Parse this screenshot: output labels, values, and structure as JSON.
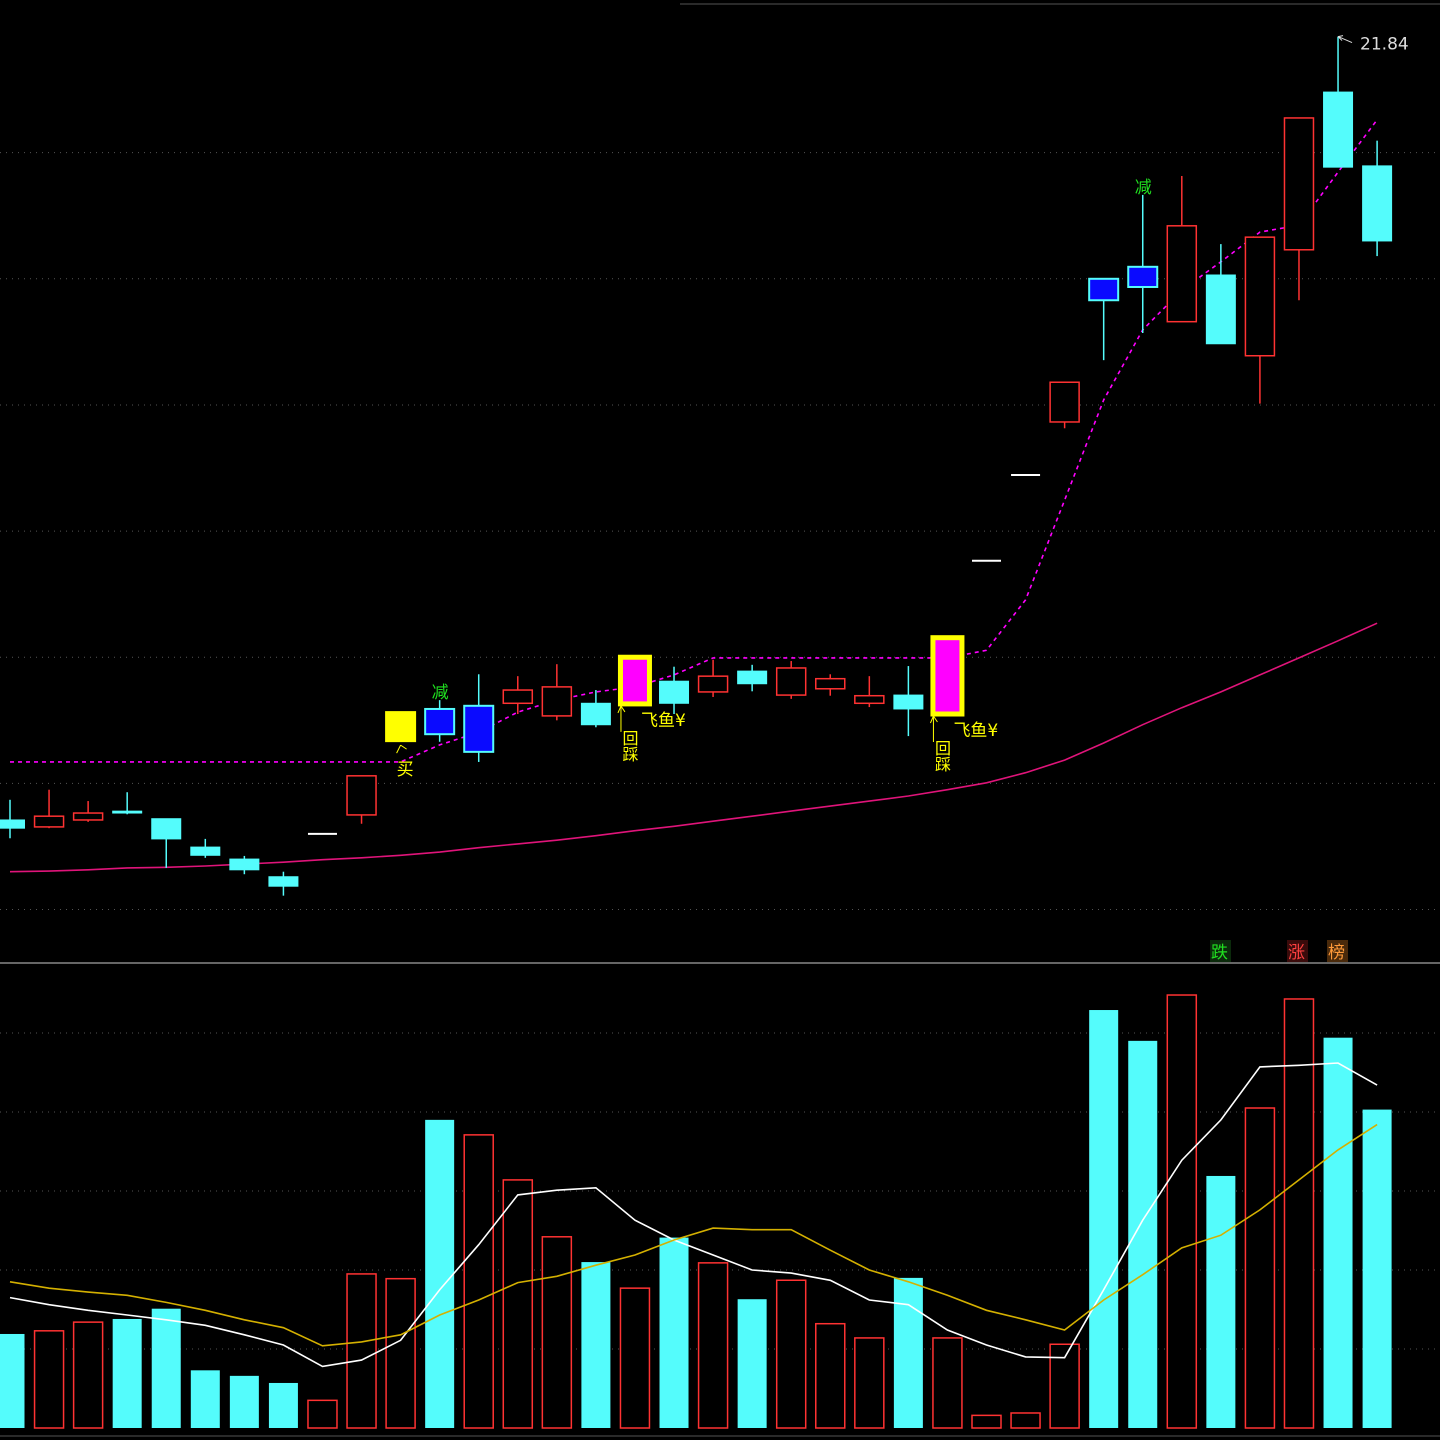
{
  "chart_data": [
    {
      "type": "candlestick",
      "open": [
        9.42,
        9.31,
        9.42,
        9.56,
        9.44,
        8.99,
        8.8,
        8.52,
        9.2,
        9.5,
        10.67,
        11.18,
        10.5,
        11.27,
        11.07,
        11.27,
        11.26,
        11.62,
        11.45,
        11.78,
        11.4,
        11.5,
        11.27,
        11.4,
        11.1,
        13.53,
        14.89,
        15.73,
        18.0,
        18.19,
        17.32,
        18.06,
        16.78,
        18.46,
        20.96,
        19.79
      ],
      "high": [
        9.74,
        9.9,
        9.72,
        9.86,
        9.44,
        9.12,
        8.85,
        8.6,
        9.2,
        10.12,
        11.13,
        11.32,
        11.73,
        11.7,
        11.89,
        11.48,
        12.0,
        11.85,
        11.96,
        11.88,
        11.94,
        11.73,
        11.7,
        11.86,
        12.31,
        13.53,
        14.89,
        16.36,
        18.0,
        19.33,
        19.63,
        18.55,
        18.66,
        20.55,
        21.84,
        20.19
      ],
      "low": [
        9.13,
        9.29,
        9.39,
        9.51,
        8.66,
        8.82,
        8.56,
        8.22,
        9.2,
        9.36,
        10.67,
        10.66,
        10.34,
        11.1,
        11.0,
        10.89,
        11.26,
        11.1,
        11.37,
        11.46,
        11.34,
        11.39,
        11.21,
        10.75,
        11.1,
        13.53,
        14.89,
        15.63,
        16.71,
        17.14,
        17.32,
        16.97,
        16.02,
        17.66,
        19.77,
        18.36
      ],
      "close": [
        9.29,
        9.48,
        9.53,
        9.53,
        9.12,
        8.86,
        8.63,
        8.37,
        9.2,
        10.12,
        11.13,
        10.78,
        11.23,
        11.48,
        11.53,
        10.93,
        12.0,
        11.27,
        11.7,
        11.58,
        11.83,
        11.66,
        11.39,
        11.18,
        12.31,
        13.53,
        14.89,
        16.36,
        17.66,
        17.87,
        18.84,
        16.97,
        18.66,
        20.55,
        19.77,
        18.6
      ],
      "body_colors": [
        null,
        null,
        null,
        null,
        null,
        null,
        null,
        null,
        null,
        null,
        "#ffff00",
        "#0a0aff",
        "#0a0aff",
        null,
        null,
        null,
        "#ff00ff",
        null,
        null,
        null,
        null,
        null,
        null,
        null,
        "#ff00ff",
        null,
        null,
        null,
        "#0a0aff",
        "#0a0aff",
        null,
        null,
        null,
        null,
        null,
        null
      ],
      "up_color": "#ff3232",
      "down_color": "#54fcfc",
      "flat_color": "#ffffff",
      "lines": [
        {
          "color": "#ff00ff",
          "dashed": true,
          "values": [
            10.34,
            10.34,
            10.34,
            10.34,
            10.34,
            10.34,
            10.34,
            10.34,
            10.34,
            10.34,
            10.34,
            10.61,
            10.81,
            11.13,
            11.32,
            11.45,
            11.53,
            11.72,
            11.99,
            11.99,
            11.99,
            11.99,
            11.99,
            11.99,
            11.99,
            12.11,
            12.91,
            14.49,
            16.08,
            17.19,
            17.82,
            18.27,
            18.74,
            18.85,
            19.69,
            20.52
          ]
        },
        {
          "color": "#e0147a",
          "dashed": false,
          "values": [
            8.6,
            8.61,
            8.63,
            8.66,
            8.67,
            8.69,
            8.72,
            8.75,
            8.79,
            8.82,
            8.86,
            8.91,
            8.98,
            9.04,
            9.1,
            9.17,
            9.25,
            9.32,
            9.4,
            9.48,
            9.56,
            9.64,
            9.72,
            9.8,
            9.9,
            10.01,
            10.17,
            10.37,
            10.64,
            10.93,
            11.2,
            11.45,
            11.72,
            11.99,
            12.26,
            12.54
          ]
        }
      ],
      "ylim": [
        7.2,
        22.42
      ],
      "yticks": [
        8,
        10,
        12,
        14,
        16,
        18,
        20
      ],
      "grid": true,
      "annotations": {
        "sell": [
          "减",
          "减"
        ],
        "buy": "买",
        "pullback": [
          "回踩",
          "回踩"
        ],
        "flyfish": [
          "飞鱼¥",
          "飞鱼¥"
        ]
      },
      "tabs": [
        "跌",
        "涨",
        "榜"
      ]
    },
    {
      "type": "volume",
      "values": [
        1.19,
        1.23,
        1.34,
        1.38,
        1.51,
        0.73,
        0.66,
        0.57,
        0.35,
        1.95,
        1.89,
        3.9,
        3.71,
        3.14,
        2.42,
        2.1,
        1.77,
        2.41,
        2.09,
        1.63,
        1.87,
        1.32,
        1.14,
        1.9,
        1.14,
        0.16,
        0.19,
        1.06,
        5.29,
        4.9,
        5.48,
        3.19,
        4.05,
        5.43,
        4.94,
        4.03
      ],
      "lines": [
        {
          "color": "#ffffff",
          "values": [
            1.65,
            1.56,
            1.49,
            1.43,
            1.37,
            1.3,
            1.18,
            1.05,
            0.78,
            0.86,
            1.11,
            1.75,
            2.32,
            2.95,
            3.01,
            3.04,
            2.63,
            2.38,
            2.19,
            2.0,
            1.96,
            1.87,
            1.62,
            1.56,
            1.24,
            1.05,
            0.9,
            0.89,
            1.75,
            2.63,
            3.39,
            3.9,
            4.57,
            4.59,
            4.62,
            4.34
          ]
        },
        {
          "color": "#d4b000",
          "values": [
            1.85,
            1.77,
            1.72,
            1.68,
            1.59,
            1.49,
            1.37,
            1.27,
            1.04,
            1.09,
            1.18,
            1.43,
            1.62,
            1.84,
            1.92,
            2.06,
            2.19,
            2.38,
            2.53,
            2.51,
            2.51,
            2.25,
            2.0,
            1.85,
            1.68,
            1.49,
            1.37,
            1.24,
            1.62,
            1.94,
            2.28,
            2.44,
            2.76,
            3.14,
            3.52,
            3.84
          ]
        }
      ],
      "ylim": [
        0,
        5.86
      ],
      "yticks": [
        1,
        2,
        3,
        4,
        5
      ],
      "grid": true
    }
  ]
}
